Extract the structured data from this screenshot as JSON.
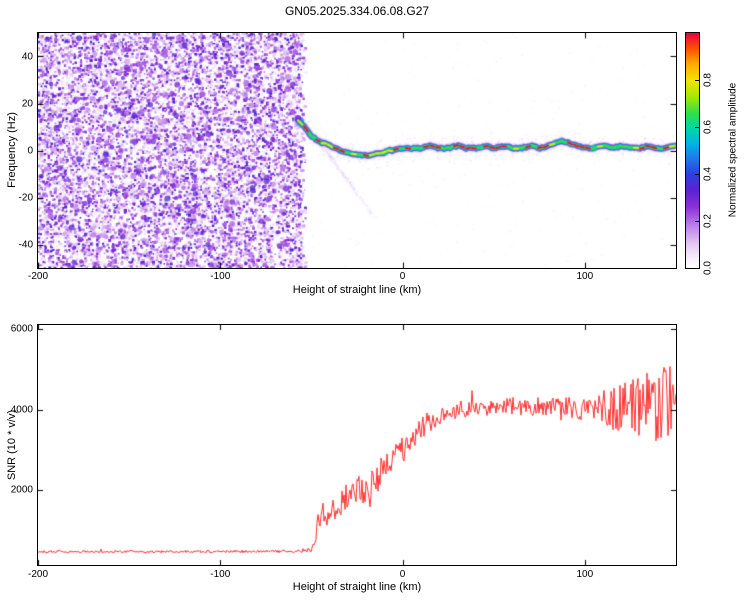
{
  "title": "GN05.2025.334.06.08.G27",
  "colors": {
    "background": "#ffffff",
    "axis": "#000000",
    "snr_line": "#ff3030",
    "noise_base_purple": "#8a2fd6"
  },
  "chart_data": [
    {
      "type": "heatmap",
      "xlabel": "Height of straight line (km)",
      "ylabel": "Frequency (Hz)",
      "xlim": [
        -200,
        150
      ],
      "ylim": [
        -50,
        50
      ],
      "xticks": [
        -200,
        -100,
        0,
        100
      ],
      "yticks": [
        -40,
        -20,
        0,
        20,
        40
      ],
      "noise_region": {
        "x_start": -200,
        "x_end": -55,
        "description": "dense purple speckle noise filling full frequency range"
      },
      "signal_trace": {
        "description": "narrow coherent signal near 0 Hz from -55 km to 150 km; red dashed core with yellow/green/cyan/blue bands and light purple halo",
        "x": [
          -57,
          -54,
          -52,
          -50,
          -48,
          -46,
          -44,
          -42,
          -40,
          -37,
          -34,
          -31,
          -28,
          -25,
          -22,
          -19,
          -16,
          -13,
          -10,
          -7,
          -4,
          -1,
          2,
          5,
          10,
          15,
          20,
          25,
          30,
          35,
          40,
          45,
          50,
          55,
          60,
          65,
          70,
          75,
          80,
          84,
          88,
          92,
          96,
          100,
          105,
          110,
          115,
          120,
          125,
          130,
          135,
          140,
          145,
          150
        ],
        "freq": [
          13,
          10,
          8,
          6,
          5,
          4,
          3,
          3,
          2,
          1,
          0,
          -1,
          -1,
          -2,
          -2,
          -2,
          -2,
          -1,
          -1,
          0,
          0,
          1,
          1,
          1,
          1,
          2,
          1,
          1,
          2,
          1,
          1,
          2,
          1,
          2,
          1,
          1,
          2,
          1,
          2,
          3,
          4,
          3,
          2,
          1,
          1,
          2,
          1,
          2,
          1,
          1,
          2,
          1,
          1,
          2
        ]
      },
      "diagonal_streak": {
        "x_start": -48,
        "freq_start": 6,
        "x_end": -16,
        "freq_end": -28,
        "description": "faint purple diagonal streak below the main trace"
      },
      "colorbar": {
        "label": "Normalized spectral amplitude",
        "range": [
          0,
          1
        ],
        "ticks": [
          0,
          0.2,
          0.4,
          0.6,
          0.8
        ],
        "stops": [
          [
            0,
            "#ffffff"
          ],
          [
            0.04,
            "#f7f0fc"
          ],
          [
            0.1,
            "#e4c9f3"
          ],
          [
            0.18,
            "#bd7fe8"
          ],
          [
            0.26,
            "#8c30d8"
          ],
          [
            0.33,
            "#5c23d0"
          ],
          [
            0.4,
            "#2c40e0"
          ],
          [
            0.47,
            "#1e7cea"
          ],
          [
            0.53,
            "#00b5e6"
          ],
          [
            0.6,
            "#00d9a0"
          ],
          [
            0.66,
            "#30e04a"
          ],
          [
            0.73,
            "#a9e800"
          ],
          [
            0.8,
            "#f2e200"
          ],
          [
            0.87,
            "#ffa800"
          ],
          [
            0.93,
            "#ff5500"
          ],
          [
            1,
            "#e8003c"
          ]
        ]
      }
    },
    {
      "type": "line",
      "xlabel": "Height of straight line (km)",
      "ylabel": "SNR (10 * v/v)",
      "xlim": [
        -200,
        150
      ],
      "ylim": [
        150,
        6100
      ],
      "xticks": [
        -200,
        -100,
        0,
        100
      ],
      "yticks": [
        2000,
        4000,
        6000
      ],
      "series": [
        {
          "name": "SNR",
          "color": "#ff3030",
          "envelope_x": [
            -200,
            -120,
            -60,
            -50,
            -46,
            -44,
            -42,
            -40,
            -38,
            -34,
            -30,
            -26,
            -22,
            -18,
            -14,
            -10,
            -6,
            -2,
            2,
            6,
            10,
            15,
            20,
            25,
            30,
            40,
            50,
            60,
            70,
            80,
            90,
            100,
            108,
            115,
            122,
            130,
            140,
            150
          ],
          "envelope_mean": [
            480,
            480,
            490,
            520,
            1200,
            1550,
            1300,
            1250,
            1500,
            1650,
            1900,
            2050,
            1950,
            2100,
            2300,
            2550,
            2750,
            2950,
            3100,
            3300,
            3500,
            3700,
            3850,
            3950,
            4000,
            4050,
            4050,
            4100,
            4050,
            4100,
            4050,
            4000,
            4050,
            4050,
            4000,
            4050,
            4100,
            4200
          ],
          "envelope_noise": [
            35,
            35,
            40,
            80,
            350,
            300,
            280,
            300,
            350,
            380,
            420,
            450,
            400,
            420,
            430,
            440,
            420,
            400,
            380,
            350,
            330,
            300,
            280,
            260,
            250,
            240,
            240,
            250,
            260,
            280,
            320,
            380,
            500,
            650,
            800,
            950,
            1100,
            1200
          ]
        }
      ]
    }
  ]
}
